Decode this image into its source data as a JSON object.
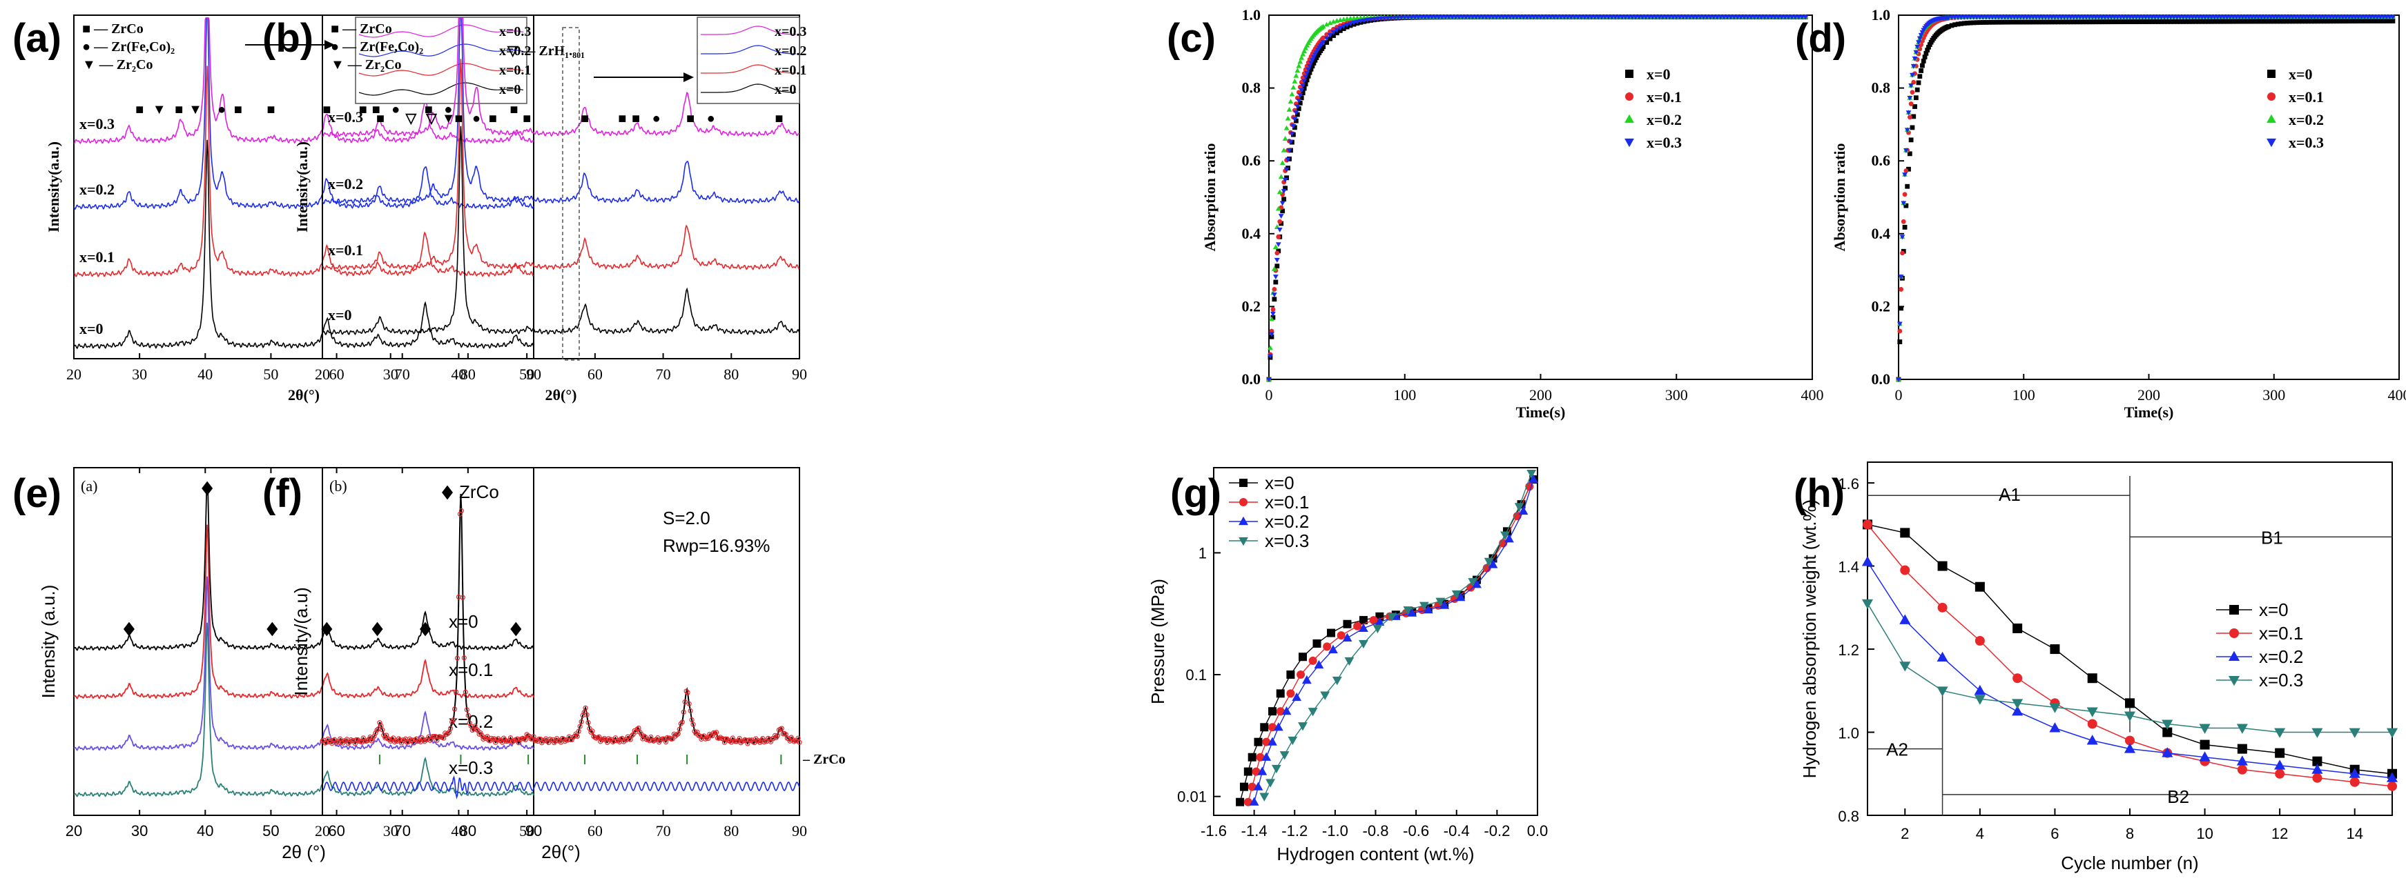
{
  "figure": {
    "colors": {
      "black": "#000000",
      "red": "#e8272b",
      "green": "#22d422",
      "blue": "#1a2bee",
      "magenta": "#e020e0",
      "teal": "#2a8078",
      "purple": "#6a4ee8",
      "grey": "#6e6e6e"
    }
  },
  "chart_data": [
    {
      "panel": "(a)",
      "type": "line",
      "xlabel": "2θ(°)",
      "ylabel": "Intensity(a.u.)",
      "xlim": [
        20,
        90
      ],
      "xticks": [
        "20",
        "30",
        "40",
        "50",
        "60",
        "70",
        "80",
        "90"
      ],
      "legend": [
        {
          "symbol": "■",
          "label": "ZrCo"
        },
        {
          "symbol": "●",
          "label": "Zr(Fe,Co)₂"
        },
        {
          "symbol": "▼",
          "label": "Zr₂Co"
        }
      ],
      "series": [
        {
          "name": "x=0",
          "color": "black"
        },
        {
          "name": "x=0.1",
          "color": "red"
        },
        {
          "name": "x=0.2",
          "color": "blue"
        },
        {
          "name": "x=0.3",
          "color": "magenta"
        }
      ],
      "peaks_2theta": [
        28.4,
        36.2,
        40.3,
        42.5,
        50.2,
        58.5,
        66.2,
        73.5,
        77.5,
        87.3
      ],
      "inset_labels": [
        "x=0.3",
        "x=0.2",
        "x=0.1",
        "x=0"
      ]
    },
    {
      "panel": "(b)",
      "type": "line",
      "xlabel": "2θ(°)",
      "ylabel": "Intensity(a.u.)",
      "xlim": [
        20,
        90
      ],
      "xticks": [
        "20",
        "30",
        "40",
        "50",
        "60",
        "70",
        "80",
        "90"
      ],
      "legend": [
        {
          "symbol": "■",
          "label": "ZrCo"
        },
        {
          "symbol": "●",
          "label": "Zr(Fe,Co)₂"
        },
        {
          "symbol": "▼",
          "label": "Zr₂Co"
        }
      ],
      "extra_legend": "ZrH₁.₈₀₁",
      "series": [
        {
          "name": "x=0",
          "color": "black"
        },
        {
          "name": "x=0.1",
          "color": "red"
        },
        {
          "name": "x=0.2",
          "color": "blue"
        },
        {
          "name": "x=0.3",
          "color": "magenta"
        }
      ],
      "inset_labels": [
        "x=0.3",
        "x=0.2",
        "x=0.1",
        "x=0"
      ]
    },
    {
      "panel": "(c)",
      "type": "scatter",
      "xlabel": "Time(s)",
      "ylabel": "Absorption ratio",
      "xlim": [
        0,
        400
      ],
      "ylim": [
        0,
        1.0
      ],
      "xticks": [
        "0",
        "100",
        "200",
        "300",
        "400"
      ],
      "yticks": [
        "0.0",
        "0.2",
        "0.4",
        "0.6",
        "0.8",
        "1.0"
      ],
      "series": [
        {
          "name": "x=0",
          "color": "black",
          "tau": 16
        },
        {
          "name": "x=0.1",
          "color": "red",
          "tau": 14
        },
        {
          "name": "x=0.2",
          "color": "green",
          "tau": 11
        },
        {
          "name": "x=0.3",
          "color": "blue",
          "tau": 15
        }
      ]
    },
    {
      "panel": "(d)",
      "type": "scatter",
      "xlabel": "Time(s)",
      "ylabel": "Absorption ratio",
      "xlim": [
        0,
        400
      ],
      "ylim": [
        0,
        1.0
      ],
      "xticks": [
        "0",
        "100",
        "200",
        "300",
        "400"
      ],
      "yticks": [
        "0.0",
        "0.2",
        "0.4",
        "0.6",
        "0.8",
        "1.0"
      ],
      "series": [
        {
          "name": "x=0",
          "color": "black",
          "tau": 9,
          "plateau": 0.98
        },
        {
          "name": "x=0.1",
          "color": "red",
          "tau": 7,
          "plateau": 0.995
        },
        {
          "name": "x=0.2",
          "color": "green",
          "tau": 6,
          "plateau": 0.995
        },
        {
          "name": "x=0.3",
          "color": "blue",
          "tau": 6,
          "plateau": 0.995
        }
      ]
    },
    {
      "panel": "(e)",
      "type": "line",
      "inner_label": "(a)",
      "xlabel": "2θ (°)",
      "ylabel": "Intensity (a.u.)",
      "xlim": [
        20,
        90
      ],
      "xticks": [
        "20",
        "30",
        "40",
        "50",
        "60",
        "70",
        "80",
        "90"
      ],
      "legend": [
        {
          "symbol": "◆",
          "label": "ZrCo"
        }
      ],
      "series": [
        {
          "name": "x=0",
          "color": "black"
        },
        {
          "name": "x=0.1",
          "color": "red"
        },
        {
          "name": "x=0.2",
          "color": "purple"
        },
        {
          "name": "x=0.3",
          "color": "teal"
        }
      ],
      "peaks_2theta": [
        28.4,
        40.3,
        50.2,
        58.5,
        66.2,
        73.5,
        87.3
      ]
    },
    {
      "panel": "(f)",
      "type": "line",
      "inner_label": "(b)",
      "xlabel": "2θ(°)",
      "ylabel": "Intensity/(a.u)",
      "xlim": [
        20,
        90
      ],
      "xticks": [
        "20",
        "30",
        "40",
        "50",
        "60",
        "70",
        "80",
        "90"
      ],
      "stats": [
        "S=2.0",
        "Rwp=16.93%"
      ],
      "phase_label": "ZrCo",
      "bragg_positions": [
        28.4,
        40.3,
        50.2,
        58.5,
        66.2,
        73.5,
        87.3
      ]
    },
    {
      "panel": "(g)",
      "type": "line",
      "xlabel": "Hydrogen content (wt.%)",
      "ylabel": "Pressure (MPa)",
      "xlim": [
        -1.6,
        0.0
      ],
      "yscale": "log",
      "ylim": [
        0.007,
        5
      ],
      "xticks": [
        "-1.6",
        "-1.4",
        "-1.2",
        "-1.0",
        "-0.8",
        "-0.6",
        "-0.4",
        "-0.2",
        "0.0"
      ],
      "yticks": [
        "0.01",
        "0.1",
        "1"
      ],
      "series": [
        {
          "name": "x=0",
          "color": "black",
          "marker": "square",
          "x": [
            -1.47,
            -1.45,
            -1.43,
            -1.41,
            -1.38,
            -1.35,
            -1.31,
            -1.27,
            -1.22,
            -1.16,
            -1.09,
            -1.02,
            -0.94,
            -0.86,
            -0.78,
            -0.7,
            -0.62,
            -0.54,
            -0.46,
            -0.38,
            -0.3,
            -0.22,
            -0.15,
            -0.08,
            -0.02
          ],
          "y": [
            0.009,
            0.012,
            0.016,
            0.021,
            0.028,
            0.037,
            0.05,
            0.07,
            0.1,
            0.14,
            0.18,
            0.22,
            0.26,
            0.28,
            0.3,
            0.31,
            0.33,
            0.35,
            0.38,
            0.45,
            0.6,
            0.9,
            1.5,
            2.5,
            4.0
          ]
        },
        {
          "name": "x=0.1",
          "color": "red",
          "marker": "circle",
          "x": [
            -1.43,
            -1.41,
            -1.39,
            -1.37,
            -1.34,
            -1.31,
            -1.27,
            -1.22,
            -1.17,
            -1.11,
            -1.04,
            -0.97,
            -0.89,
            -0.81,
            -0.73,
            -0.65,
            -0.57,
            -0.49,
            -0.41,
            -0.33,
            -0.25,
            -0.17,
            -0.1,
            -0.04
          ],
          "y": [
            0.009,
            0.012,
            0.016,
            0.021,
            0.028,
            0.037,
            0.05,
            0.07,
            0.1,
            0.13,
            0.17,
            0.21,
            0.25,
            0.28,
            0.3,
            0.32,
            0.34,
            0.37,
            0.42,
            0.52,
            0.75,
            1.2,
            2.0,
            3.5
          ]
        },
        {
          "name": "x=0.2",
          "color": "blue",
          "marker": "triangle",
          "x": [
            -1.4,
            -1.38,
            -1.36,
            -1.34,
            -1.31,
            -1.28,
            -1.24,
            -1.19,
            -1.14,
            -1.08,
            -1.01,
            -0.94,
            -0.86,
            -0.78,
            -0.7,
            -0.62,
            -0.54,
            -0.46,
            -0.38,
            -0.3,
            -0.22,
            -0.14,
            -0.07,
            -0.02
          ],
          "y": [
            0.009,
            0.012,
            0.016,
            0.021,
            0.028,
            0.037,
            0.05,
            0.065,
            0.09,
            0.12,
            0.16,
            0.2,
            0.24,
            0.27,
            0.3,
            0.32,
            0.34,
            0.37,
            0.43,
            0.55,
            0.8,
            1.3,
            2.2,
            4.0
          ]
        },
        {
          "name": "x=0.3",
          "color": "teal",
          "marker": "triangle-down",
          "x": [
            -1.35,
            -1.32,
            -1.29,
            -1.25,
            -1.21,
            -1.16,
            -1.11,
            -1.05,
            -0.99,
            -0.93,
            -0.86,
            -0.79,
            -0.72,
            -0.64,
            -0.56,
            -0.48,
            -0.4,
            -0.32,
            -0.24,
            -0.16,
            -0.09,
            -0.03
          ],
          "y": [
            0.01,
            0.013,
            0.017,
            0.022,
            0.029,
            0.038,
            0.05,
            0.068,
            0.09,
            0.13,
            0.18,
            0.24,
            0.3,
            0.34,
            0.37,
            0.4,
            0.46,
            0.58,
            0.85,
            1.4,
            2.4,
            4.5
          ]
        }
      ]
    },
    {
      "panel": "(h)",
      "type": "line",
      "xlabel": "Cycle number (n)",
      "ylabel": "Hydrogen absorption weight (wt.%)",
      "xlim": [
        1,
        15
      ],
      "ylim": [
        0.8,
        1.65
      ],
      "xticks": [
        "2",
        "4",
        "6",
        "8",
        "10",
        "12",
        "14"
      ],
      "yticks": [
        "0.8",
        "1.0",
        "1.2",
        "1.4",
        "1.6"
      ],
      "annotations": [
        "A1",
        "B1",
        "A2",
        "B2"
      ],
      "series": [
        {
          "name": "x=0",
          "color": "black",
          "marker": "square",
          "x": [
            1,
            2,
            3,
            4,
            5,
            6,
            7,
            8,
            9,
            10,
            11,
            12,
            13,
            14,
            15
          ],
          "y": [
            1.5,
            1.48,
            1.4,
            1.35,
            1.25,
            1.2,
            1.13,
            1.07,
            1.0,
            0.97,
            0.96,
            0.95,
            0.93,
            0.91,
            0.9
          ]
        },
        {
          "name": "x=0.1",
          "color": "red",
          "marker": "circle",
          "x": [
            1,
            2,
            3,
            4,
            5,
            6,
            7,
            8,
            9,
            10,
            11,
            12,
            13,
            14,
            15
          ],
          "y": [
            1.5,
            1.39,
            1.3,
            1.22,
            1.13,
            1.07,
            1.02,
            0.98,
            0.95,
            0.93,
            0.91,
            0.9,
            0.89,
            0.88,
            0.87
          ]
        },
        {
          "name": "x=0.2",
          "color": "blue",
          "marker": "triangle",
          "x": [
            1,
            2,
            3,
            4,
            5,
            6,
            7,
            8,
            9,
            10,
            11,
            12,
            13,
            14,
            15
          ],
          "y": [
            1.41,
            1.27,
            1.18,
            1.1,
            1.05,
            1.01,
            0.98,
            0.96,
            0.95,
            0.94,
            0.93,
            0.92,
            0.91,
            0.9,
            0.89
          ]
        },
        {
          "name": "x=0.3",
          "color": "teal",
          "marker": "triangle-down",
          "x": [
            1,
            2,
            3,
            4,
            5,
            6,
            7,
            8,
            9,
            10,
            11,
            12,
            13,
            14,
            15
          ],
          "y": [
            1.31,
            1.16,
            1.1,
            1.08,
            1.07,
            1.06,
            1.05,
            1.04,
            1.02,
            1.01,
            1.01,
            1.0,
            1.0,
            1.0,
            1.0
          ]
        }
      ]
    }
  ]
}
